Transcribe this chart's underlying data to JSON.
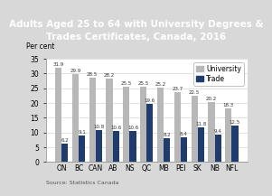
{
  "title": "Adults Aged 25 to 64 with University Degrees &\nTrades Certificates, Canada, 2016",
  "title_bg_color": "#1e3d6e",
  "title_text_color": "#ffffff",
  "categories": [
    "ON",
    "BC",
    "CAN",
    "AB",
    "NS",
    "QC",
    "MB",
    "PEI",
    "SK",
    "NB",
    "NFL"
  ],
  "university": [
    31.9,
    29.9,
    28.5,
    28.2,
    25.5,
    25.5,
    25.2,
    23.7,
    22.5,
    20.2,
    18.3
  ],
  "trade": [
    6.2,
    9.1,
    10.8,
    10.6,
    10.6,
    19.6,
    8.2,
    8.4,
    11.8,
    9.4,
    12.5
  ],
  "university_color": "#b8b8b8",
  "trade_color": "#1e3d6e",
  "ylabel": "Per cent",
  "ylim": [
    0,
    35
  ],
  "yticks": [
    0,
    5,
    10,
    15,
    20,
    25,
    30,
    35
  ],
  "source": "Source: Statistics Canada",
  "outer_bg_color": "#d8d8d8",
  "plot_bg_color": "#e8e8e8",
  "inner_bg_color": "#ffffff",
  "title_fontsize": 7.5,
  "axis_fontsize": 5.5,
  "tick_fontsize": 5.5,
  "label_fontsize": 4.0,
  "legend_fontsize": 5.5,
  "source_fontsize": 4.5
}
